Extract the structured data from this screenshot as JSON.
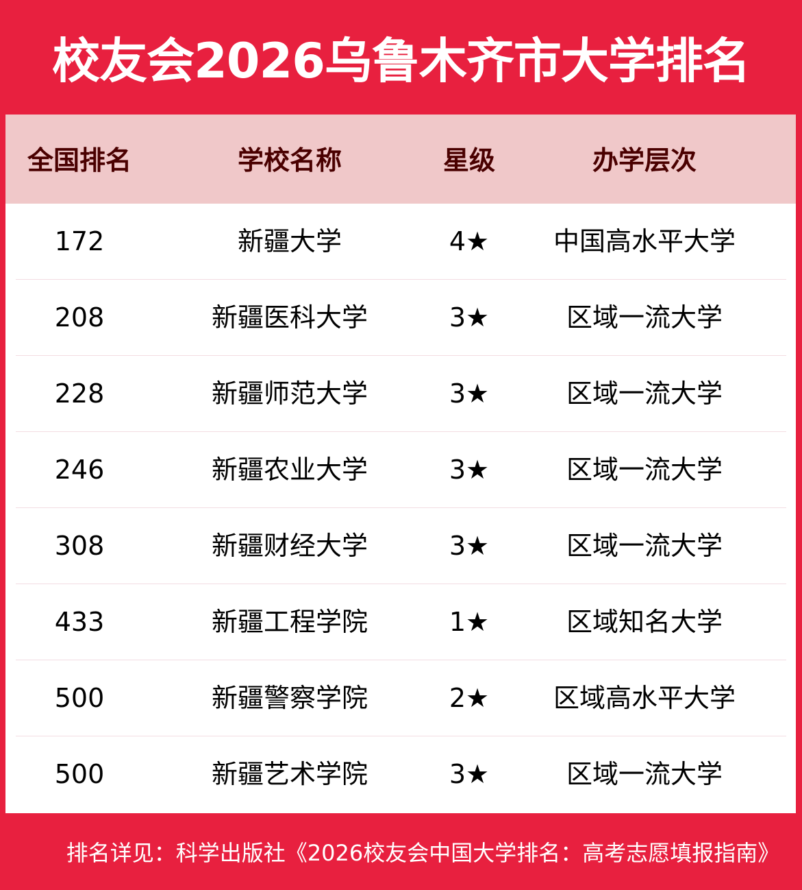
{
  "title": "校友会2026乌鲁木齐市大学排名",
  "colors": {
    "brand_red": "#E8203F",
    "header_bg": "#F0C8C9",
    "header_text": "#4A0000"
  },
  "table": {
    "headers": [
      "全国排名",
      "学校名称",
      "星级",
      "办学层次"
    ],
    "rows": [
      {
        "rank": "172",
        "name": "新疆大学",
        "stars": "4★",
        "level": "中国高水平大学"
      },
      {
        "rank": "208",
        "name": "新疆医科大学",
        "stars": "3★",
        "level": "区域一流大学"
      },
      {
        "rank": "228",
        "name": "新疆师范大学",
        "stars": "3★",
        "level": "区域一流大学"
      },
      {
        "rank": "246",
        "name": "新疆农业大学",
        "stars": "3★",
        "level": "区域一流大学"
      },
      {
        "rank": "308",
        "name": "新疆财经大学",
        "stars": "3★",
        "level": "区域一流大学"
      },
      {
        "rank": "433",
        "name": "新疆工程学院",
        "stars": "1★",
        "level": "区域知名大学"
      },
      {
        "rank": "500",
        "name": "新疆警察学院",
        "stars": "2★",
        "level": "区域高水平大学"
      },
      {
        "rank": "500",
        "name": "新疆艺术学院",
        "stars": "3★",
        "level": "区域一流大学"
      }
    ]
  },
  "footer": "排名详见：科学出版社《2026校友会中国大学排名：高考志愿填报指南》"
}
